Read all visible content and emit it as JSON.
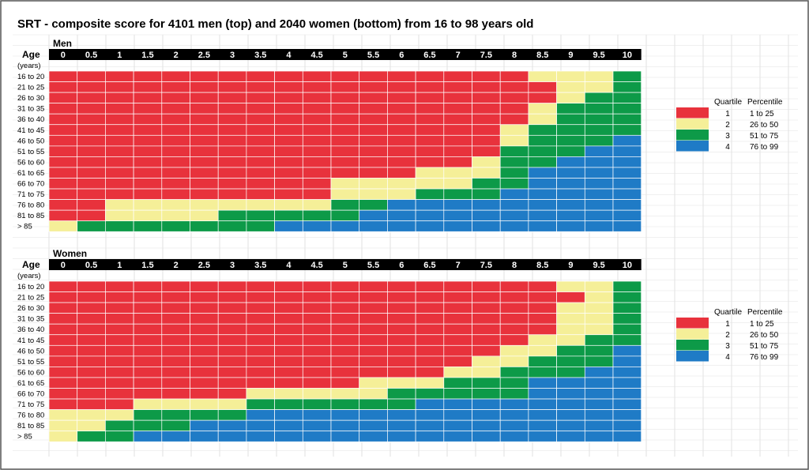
{
  "title": "SRT - composite score for 4101 men (top) and 2040 women (bottom) from 16 to 98 years old",
  "colors": {
    "1": "#e8323c",
    "2": "#f5ef98",
    "3": "#0d9a48",
    "4": "#1f7bc6",
    "header_bg": "#000000",
    "grid": "#cfcfcf"
  },
  "chart_data": [
    {
      "type": "heatmap",
      "panel_label": "Men",
      "row_header": "Age",
      "row_header_unit": "(years)",
      "columns": [
        "0",
        "0.5",
        "1",
        "1.5",
        "2",
        "2.5",
        "3",
        "3.5",
        "4",
        "4.5",
        "5",
        "5.5",
        "6",
        "6.5",
        "7",
        "7.5",
        "8",
        "8.5",
        "9",
        "9.5",
        "10"
      ],
      "rows": [
        "16 to 20",
        "21 to 25",
        "26 to 30",
        "31 to 35",
        "36 to 40",
        "41 to 45",
        "46 to 50",
        "51 to 55",
        "56 to 60",
        "61 to 65",
        "66 to 70",
        "71 to 75",
        "76 to 80",
        "81 to 85",
        "> 85"
      ],
      "values": [
        [
          1,
          1,
          1,
          1,
          1,
          1,
          1,
          1,
          1,
          1,
          1,
          1,
          1,
          1,
          1,
          1,
          1,
          2,
          2,
          2,
          3
        ],
        [
          1,
          1,
          1,
          1,
          1,
          1,
          1,
          1,
          1,
          1,
          1,
          1,
          1,
          1,
          1,
          1,
          1,
          1,
          2,
          2,
          3
        ],
        [
          1,
          1,
          1,
          1,
          1,
          1,
          1,
          1,
          1,
          1,
          1,
          1,
          1,
          1,
          1,
          1,
          1,
          1,
          2,
          3,
          3
        ],
        [
          1,
          1,
          1,
          1,
          1,
          1,
          1,
          1,
          1,
          1,
          1,
          1,
          1,
          1,
          1,
          1,
          1,
          2,
          3,
          3,
          3
        ],
        [
          1,
          1,
          1,
          1,
          1,
          1,
          1,
          1,
          1,
          1,
          1,
          1,
          1,
          1,
          1,
          1,
          1,
          2,
          3,
          3,
          3
        ],
        [
          1,
          1,
          1,
          1,
          1,
          1,
          1,
          1,
          1,
          1,
          1,
          1,
          1,
          1,
          1,
          1,
          2,
          3,
          3,
          3,
          3
        ],
        [
          1,
          1,
          1,
          1,
          1,
          1,
          1,
          1,
          1,
          1,
          1,
          1,
          1,
          1,
          1,
          1,
          2,
          3,
          3,
          3,
          4
        ],
        [
          1,
          1,
          1,
          1,
          1,
          1,
          1,
          1,
          1,
          1,
          1,
          1,
          1,
          1,
          1,
          1,
          3,
          3,
          3,
          4,
          4
        ],
        [
          1,
          1,
          1,
          1,
          1,
          1,
          1,
          1,
          1,
          1,
          1,
          1,
          1,
          1,
          1,
          2,
          3,
          3,
          4,
          4,
          4
        ],
        [
          1,
          1,
          1,
          1,
          1,
          1,
          1,
          1,
          1,
          1,
          1,
          1,
          1,
          2,
          2,
          2,
          3,
          4,
          4,
          4,
          4
        ],
        [
          1,
          1,
          1,
          1,
          1,
          1,
          1,
          1,
          1,
          1,
          2,
          2,
          2,
          2,
          2,
          3,
          3,
          4,
          4,
          4,
          4
        ],
        [
          1,
          1,
          1,
          1,
          1,
          1,
          1,
          1,
          1,
          1,
          2,
          2,
          2,
          3,
          3,
          3,
          4,
          4,
          4,
          4,
          4
        ],
        [
          1,
          1,
          2,
          2,
          2,
          2,
          2,
          2,
          2,
          2,
          3,
          3,
          4,
          4,
          4,
          4,
          4,
          4,
          4,
          4,
          4
        ],
        [
          1,
          1,
          2,
          2,
          2,
          2,
          3,
          3,
          3,
          3,
          3,
          4,
          4,
          4,
          4,
          4,
          4,
          4,
          4,
          4,
          4
        ],
        [
          2,
          3,
          3,
          3,
          3,
          3,
          3,
          3,
          4,
          4,
          4,
          4,
          4,
          4,
          4,
          4,
          4,
          4,
          4,
          4,
          4
        ]
      ],
      "legend": {
        "headers": [
          "Quartile",
          "Percentile"
        ],
        "entries": [
          {
            "quartile": "1",
            "percentile": "1 to 25"
          },
          {
            "quartile": "2",
            "percentile": "26 to 50"
          },
          {
            "quartile": "3",
            "percentile": "51 to 75"
          },
          {
            "quartile": "4",
            "percentile": "76 to 99"
          }
        ]
      }
    },
    {
      "type": "heatmap",
      "panel_label": "Women",
      "row_header": "Age",
      "row_header_unit": "(years)",
      "columns": [
        "0",
        "0.5",
        "1",
        "1.5",
        "2",
        "2.5",
        "3",
        "3.5",
        "4",
        "4.5",
        "5",
        "5.5",
        "6",
        "6.5",
        "7",
        "7.5",
        "8",
        "8.5",
        "9",
        "9.5",
        "10"
      ],
      "rows": [
        "16 to 20",
        "21 to 25",
        "26 to 30",
        "31 to 35",
        "36 to 40",
        "41 to 45",
        "46 to 50",
        "51 to 55",
        "56 to 60",
        "61 to 65",
        "66 to 70",
        "71 to 75",
        "76 to 80",
        "81 to 85",
        "> 85"
      ],
      "values": [
        [
          1,
          1,
          1,
          1,
          1,
          1,
          1,
          1,
          1,
          1,
          1,
          1,
          1,
          1,
          1,
          1,
          1,
          1,
          2,
          2,
          3
        ],
        [
          1,
          1,
          1,
          1,
          1,
          1,
          1,
          1,
          1,
          1,
          1,
          1,
          1,
          1,
          1,
          1,
          1,
          1,
          1,
          2,
          3
        ],
        [
          1,
          1,
          1,
          1,
          1,
          1,
          1,
          1,
          1,
          1,
          1,
          1,
          1,
          1,
          1,
          1,
          1,
          1,
          2,
          2,
          3
        ],
        [
          1,
          1,
          1,
          1,
          1,
          1,
          1,
          1,
          1,
          1,
          1,
          1,
          1,
          1,
          1,
          1,
          1,
          1,
          2,
          2,
          3
        ],
        [
          1,
          1,
          1,
          1,
          1,
          1,
          1,
          1,
          1,
          1,
          1,
          1,
          1,
          1,
          1,
          1,
          1,
          1,
          2,
          2,
          3
        ],
        [
          1,
          1,
          1,
          1,
          1,
          1,
          1,
          1,
          1,
          1,
          1,
          1,
          1,
          1,
          1,
          1,
          1,
          2,
          2,
          3,
          3
        ],
        [
          1,
          1,
          1,
          1,
          1,
          1,
          1,
          1,
          1,
          1,
          1,
          1,
          1,
          1,
          1,
          1,
          2,
          2,
          3,
          3,
          4
        ],
        [
          1,
          1,
          1,
          1,
          1,
          1,
          1,
          1,
          1,
          1,
          1,
          1,
          1,
          1,
          1,
          2,
          2,
          3,
          3,
          3,
          4
        ],
        [
          1,
          1,
          1,
          1,
          1,
          1,
          1,
          1,
          1,
          1,
          1,
          1,
          1,
          1,
          2,
          2,
          3,
          3,
          3,
          4,
          4
        ],
        [
          1,
          1,
          1,
          1,
          1,
          1,
          1,
          1,
          1,
          1,
          1,
          2,
          2,
          2,
          3,
          3,
          3,
          4,
          4,
          4,
          4
        ],
        [
          1,
          1,
          1,
          1,
          1,
          1,
          1,
          2,
          2,
          2,
          2,
          2,
          3,
          3,
          3,
          3,
          3,
          4,
          4,
          4,
          4
        ],
        [
          1,
          1,
          1,
          2,
          2,
          2,
          2,
          3,
          3,
          3,
          3,
          3,
          3,
          4,
          4,
          4,
          4,
          4,
          4,
          4,
          4
        ],
        [
          2,
          2,
          2,
          3,
          3,
          3,
          3,
          4,
          4,
          4,
          4,
          4,
          4,
          4,
          4,
          4,
          4,
          4,
          4,
          4,
          4
        ],
        [
          2,
          2,
          3,
          3,
          3,
          4,
          4,
          4,
          4,
          4,
          4,
          4,
          4,
          4,
          4,
          4,
          4,
          4,
          4,
          4,
          4
        ],
        [
          2,
          3,
          3,
          4,
          4,
          4,
          4,
          4,
          4,
          4,
          4,
          4,
          4,
          4,
          4,
          4,
          4,
          4,
          4,
          4,
          4
        ]
      ],
      "legend": {
        "headers": [
          "Quartile",
          "Percentile"
        ],
        "entries": [
          {
            "quartile": "1",
            "percentile": "1 to 25"
          },
          {
            "quartile": "2",
            "percentile": "26 to 50"
          },
          {
            "quartile": "3",
            "percentile": "51 to 75"
          },
          {
            "quartile": "4",
            "percentile": "76 to 99"
          }
        ]
      }
    }
  ]
}
